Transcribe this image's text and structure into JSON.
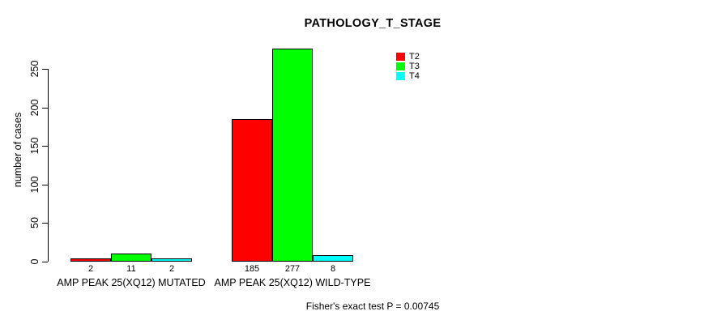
{
  "chart_data": {
    "type": "bar",
    "title": "PATHOLOGY_T_STAGE",
    "ylabel": "number of cases",
    "xlabel": "",
    "annotation": "Fisher's exact test P = 0.00745",
    "categories": [
      "AMP PEAK 25(XQ12) MUTATED",
      "AMP PEAK 25(XQ12) WILD-TYPE"
    ],
    "series": [
      {
        "name": "T2",
        "color": "#FF0000",
        "values": [
          2,
          185
        ]
      },
      {
        "name": "T3",
        "color": "#00FF00",
        "values": [
          11,
          277
        ]
      },
      {
        "name": "T4",
        "color": "#00FFFF",
        "values": [
          2,
          8
        ]
      }
    ],
    "yticks": [
      0,
      50,
      100,
      150,
      200,
      250
    ],
    "ylim": [
      0,
      277
    ],
    "bar_value_labels": [
      [
        2,
        11,
        2
      ],
      [
        185,
        277,
        8
      ]
    ],
    "legend_position": "top-right",
    "legend_labels": [
      "T2",
      "T3",
      "T4"
    ],
    "grid": false,
    "background": "#FFFFFF",
    "bar_border_color": "#000000",
    "text_color": "#000000"
  }
}
